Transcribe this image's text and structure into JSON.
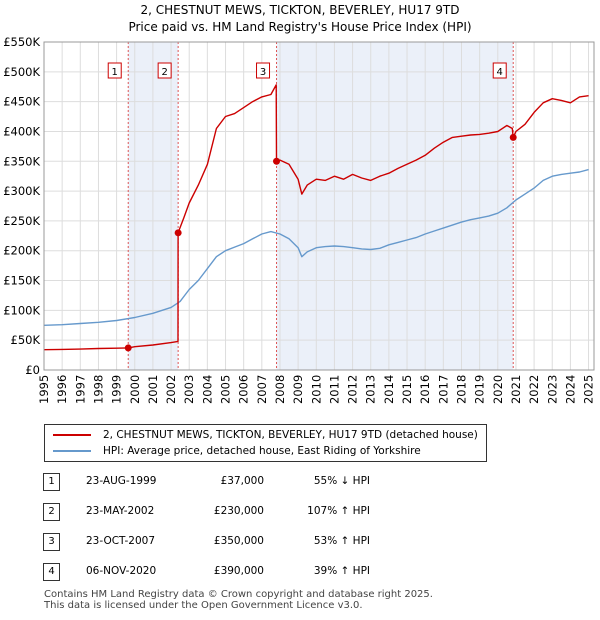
{
  "title_line1": "2, CHESTNUT MEWS, TICKTON, BEVERLEY, HU17 9TD",
  "title_line2": "Price paid vs. HM Land Registry's House Price Index (HPI)",
  "colors": {
    "property": "#cc0000",
    "hpi": "#6699cc",
    "shade": "#dde6f5",
    "grid": "#dddddd",
    "vline": "#dd5555"
  },
  "chart_data": {
    "type": "line",
    "title": "Price paid vs. HM Land Registry's House Price Index (HPI)",
    "xlabel": "",
    "ylabel": "",
    "xlim": [
      1995,
      2025.3
    ],
    "ylim": [
      0,
      550000
    ],
    "x_ticks": [
      "1995",
      "1996",
      "1997",
      "1998",
      "1999",
      "2000",
      "2001",
      "2002",
      "2003",
      "2004",
      "2005",
      "2006",
      "2007",
      "2008",
      "2009",
      "2010",
      "2011",
      "2012",
      "2013",
      "2014",
      "2015",
      "2016",
      "2017",
      "2018",
      "2019",
      "2020",
      "2021",
      "2022",
      "2023",
      "2024",
      "2025"
    ],
    "y_ticks": [
      {
        "value": 0,
        "label": "£0"
      },
      {
        "value": 50000,
        "label": "£50K"
      },
      {
        "value": 100000,
        "label": "£100K"
      },
      {
        "value": 150000,
        "label": "£150K"
      },
      {
        "value": 200000,
        "label": "£200K"
      },
      {
        "value": 250000,
        "label": "£250K"
      },
      {
        "value": 300000,
        "label": "£300K"
      },
      {
        "value": 350000,
        "label": "£350K"
      },
      {
        "value": 400000,
        "label": "£400K"
      },
      {
        "value": 450000,
        "label": "£450K"
      },
      {
        "value": 500000,
        "label": "£500K"
      },
      {
        "value": 550000,
        "label": "£550K"
      }
    ],
    "shaded_ranges": [
      [
        1999.64,
        2002.39
      ],
      [
        2007.81,
        2020.85
      ]
    ],
    "markers": [
      {
        "label": "1",
        "x": 1999.64,
        "y": 37000
      },
      {
        "label": "2",
        "x": 2002.39,
        "y": 230000
      },
      {
        "label": "3",
        "x": 2007.81,
        "y": 350000
      },
      {
        "label": "4",
        "x": 2020.85,
        "y": 390000
      }
    ],
    "series": [
      {
        "name": "2, CHESTNUT MEWS, TICKTON, BEVERLEY, HU17 9TD (detached house)",
        "x": [
          1995,
          1996,
          1997,
          1998,
          1999,
          1999.64,
          2000,
          2001,
          2002,
          2002.38,
          2002.39,
          2002.7,
          2003,
          2003.5,
          2004,
          2004.5,
          2005,
          2005.5,
          2006,
          2006.5,
          2007,
          2007.5,
          2007.79,
          2007.81,
          2008,
          2008.5,
          2009,
          2009.2,
          2009.5,
          2010,
          2010.5,
          2011,
          2011.5,
          2012,
          2012.5,
          2013,
          2013.5,
          2014,
          2014.5,
          2015,
          2015.5,
          2016,
          2016.5,
          2017,
          2017.5,
          2018,
          2018.5,
          2019,
          2019.5,
          2020,
          2020.5,
          2020.8,
          2020.85,
          2021,
          2021.5,
          2022,
          2022.5,
          2023,
          2023.5,
          2024,
          2024.5,
          2025
        ],
        "y": [
          34000,
          34500,
          35000,
          36000,
          36500,
          37000,
          39000,
          42000,
          46000,
          48000,
          230000,
          255000,
          280000,
          310000,
          345000,
          405000,
          425000,
          430000,
          440000,
          450000,
          458000,
          462000,
          478000,
          350000,
          352000,
          345000,
          320000,
          295000,
          310000,
          320000,
          318000,
          325000,
          320000,
          328000,
          322000,
          318000,
          325000,
          330000,
          338000,
          345000,
          352000,
          360000,
          372000,
          382000,
          390000,
          392000,
          394000,
          395000,
          397000,
          400000,
          410000,
          405000,
          390000,
          400000,
          412000,
          432000,
          448000,
          455000,
          452000,
          448000,
          458000,
          460000
        ]
      },
      {
        "name": "HPI: Average price, detached house, East Riding of Yorkshire",
        "x": [
          1995,
          1996,
          1997,
          1998,
          1999,
          2000,
          2001,
          2002,
          2002.5,
          2003,
          2003.5,
          2004,
          2004.5,
          2005,
          2005.5,
          2006,
          2006.5,
          2007,
          2007.5,
          2008,
          2008.5,
          2009,
          2009.2,
          2009.5,
          2010,
          2010.5,
          2011,
          2011.5,
          2012,
          2012.5,
          2013,
          2013.5,
          2014,
          2014.5,
          2015,
          2015.5,
          2016,
          2016.5,
          2017,
          2017.5,
          2018,
          2018.5,
          2019,
          2019.5,
          2020,
          2020.5,
          2021,
          2021.5,
          2022,
          2022.5,
          2023,
          2023.5,
          2024,
          2024.5,
          2025
        ],
        "y": [
          75000,
          76000,
          78000,
          80000,
          83000,
          88000,
          95000,
          105000,
          115000,
          135000,
          150000,
          170000,
          190000,
          200000,
          206000,
          212000,
          220000,
          228000,
          232000,
          228000,
          220000,
          205000,
          190000,
          198000,
          205000,
          207000,
          208000,
          207000,
          205000,
          203000,
          202000,
          204000,
          210000,
          214000,
          218000,
          222000,
          228000,
          233000,
          238000,
          243000,
          248000,
          252000,
          255000,
          258000,
          263000,
          272000,
          285000,
          295000,
          305000,
          318000,
          325000,
          328000,
          330000,
          332000,
          336000
        ]
      }
    ]
  },
  "legend": {
    "property": "2, CHESTNUT MEWS, TICKTON, BEVERLEY, HU17 9TD (detached house)",
    "hpi": "HPI: Average price, detached house, East Riding of Yorkshire"
  },
  "sales": [
    {
      "num": "1",
      "date": "23-AUG-1999",
      "price": "£37,000",
      "hpi": "55% ↓ HPI"
    },
    {
      "num": "2",
      "date": "23-MAY-2002",
      "price": "£230,000",
      "hpi": "107% ↑ HPI"
    },
    {
      "num": "3",
      "date": "23-OCT-2007",
      "price": "£350,000",
      "hpi": "53% ↑ HPI"
    },
    {
      "num": "4",
      "date": "06-NOV-2020",
      "price": "£390,000",
      "hpi": "39% ↑ HPI"
    }
  ],
  "footer_line1": "Contains HM Land Registry data © Crown copyright and database right 2025.",
  "footer_line2": "This data is licensed under the Open Government Licence v3.0."
}
